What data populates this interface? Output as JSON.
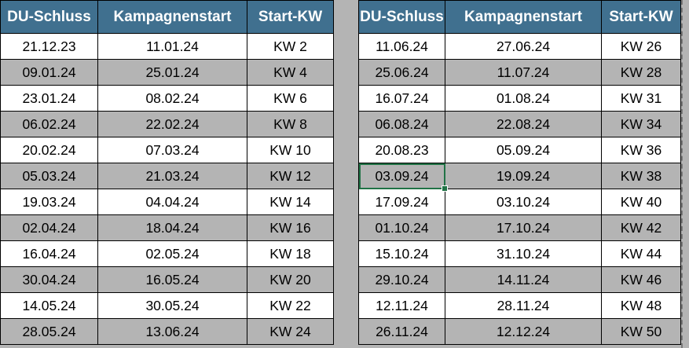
{
  "app": {
    "kind": "spreadsheet-campaign-schedule"
  },
  "colors": {
    "header_bg": "#40708f",
    "header_text": "#ffffff",
    "row_even_bg": "#ffffff",
    "row_odd_bg": "#b4b4b4",
    "grid_line": "#000000",
    "selection_border": "#217346",
    "canvas_bg": "#b4b4b4",
    "page_break_line": "#7a7a7a"
  },
  "tables": [
    {
      "name": "schedule-first-half",
      "headers": [
        "DU-Schluss",
        "Kampagnenstart",
        "Start-KW"
      ],
      "rows": [
        [
          "21.12.23",
          "11.01.24",
          "KW 2"
        ],
        [
          "09.01.24",
          "25.01.24",
          "KW 4"
        ],
        [
          "23.01.24",
          "08.02.24",
          "KW 6"
        ],
        [
          "06.02.24",
          "22.02.24",
          "KW 8"
        ],
        [
          "20.02.24",
          "07.03.24",
          "KW 10"
        ],
        [
          "05.03.24",
          "21.03.24",
          "KW 12"
        ],
        [
          "19.03.24",
          "04.04.24",
          "KW 14"
        ],
        [
          "02.04.24",
          "18.04.24",
          "KW 16"
        ],
        [
          "16.04.24",
          "02.05.24",
          "KW 18"
        ],
        [
          "30.04.24",
          "16.05.24",
          "KW 20"
        ],
        [
          "14.05.24",
          "30.05.24",
          "KW 22"
        ],
        [
          "28.05.24",
          "13.06.24",
          "KW 24"
        ]
      ]
    },
    {
      "name": "schedule-second-half",
      "headers": [
        "DU-Schluss",
        "Kampagnenstart",
        "Start-KW"
      ],
      "rows": [
        [
          "11.06.24",
          "27.06.24",
          "KW 26"
        ],
        [
          "25.06.24",
          "11.07.24",
          "KW 28"
        ],
        [
          "16.07.24",
          "01.08.24",
          "KW 31"
        ],
        [
          "06.08.24",
          "22.08.24",
          "KW 34"
        ],
        [
          "20.08.23",
          "05.09.24",
          "KW 36"
        ],
        [
          "03.09.24",
          "19.09.24",
          "KW 38"
        ],
        [
          "17.09.24",
          "03.10.24",
          "KW 40"
        ],
        [
          "01.10.24",
          "17.10.24",
          "KW 42"
        ],
        [
          "15.10.24",
          "31.10.24",
          "KW 44"
        ],
        [
          "29.10.24",
          "14.11.24",
          "KW 46"
        ],
        [
          "12.11.24",
          "28.11.24",
          "KW 48"
        ],
        [
          "26.11.24",
          "12.12.24",
          "KW 50"
        ]
      ],
      "selected_cell": {
        "row": 5,
        "col": 0,
        "value": "03.09.24"
      }
    }
  ]
}
